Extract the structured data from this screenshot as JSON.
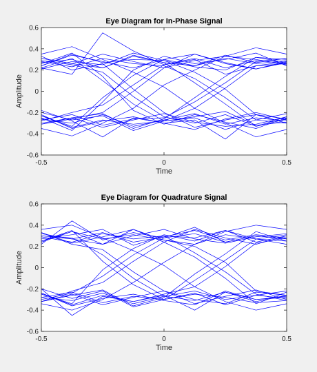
{
  "chart_data": [
    {
      "type": "line",
      "title": "Eye Diagram for In-Phase Signal",
      "xlabel": "Time",
      "ylabel": "Amplitude",
      "xlim": [
        -0.5,
        0.5
      ],
      "ylim": [
        -0.6,
        0.6
      ],
      "xticks": [
        -0.5,
        0,
        0.5
      ],
      "xtick_labels": [
        "-0.5",
        "0",
        "0.5"
      ],
      "yticks": [
        -0.6,
        -0.4,
        -0.2,
        0,
        0.2,
        0.4,
        0.6
      ],
      "ytick_labels": [
        "-0.6",
        "-0.4",
        "-0.2",
        "0",
        "0.2",
        "0.4",
        "0.6"
      ],
      "grid": false,
      "line_color": "#0000ff",
      "x": [
        -0.5,
        -0.375,
        -0.25,
        -0.125,
        0,
        0.125,
        0.25,
        0.375,
        0.5
      ],
      "traces": [
        [
          0.27,
          0.3,
          0.22,
          0.33,
          0.27,
          0.24,
          0.31,
          0.26,
          0.29
        ],
        [
          0.24,
          0.34,
          0.28,
          0.22,
          0.3,
          0.35,
          0.26,
          0.21,
          0.27
        ],
        [
          0.31,
          0.26,
          0.35,
          0.28,
          0.22,
          0.29,
          0.33,
          0.3,
          0.25
        ],
        [
          0.21,
          0.28,
          0.25,
          0.36,
          0.29,
          0.23,
          0.2,
          0.32,
          0.3
        ],
        [
          -0.26,
          -0.3,
          -0.22,
          -0.33,
          -0.27,
          -0.21,
          -0.31,
          -0.25,
          -0.28
        ],
        [
          -0.22,
          -0.35,
          -0.28,
          -0.24,
          -0.3,
          -0.36,
          -0.26,
          -0.2,
          -0.27
        ],
        [
          -0.3,
          -0.25,
          -0.34,
          -0.27,
          -0.21,
          -0.29,
          -0.33,
          -0.31,
          -0.24
        ],
        [
          -0.2,
          -0.27,
          -0.23,
          -0.37,
          -0.28,
          -0.24,
          -0.19,
          -0.32,
          -0.29
        ],
        [
          0.29,
          0.25,
          0.18,
          -0.05,
          -0.24,
          -0.3,
          -0.22,
          -0.33,
          -0.26
        ],
        [
          0.22,
          0.31,
          0.1,
          -0.12,
          -0.28,
          -0.25,
          -0.36,
          -0.27,
          -0.21
        ],
        [
          0.33,
          0.2,
          0.26,
          0.02,
          -0.2,
          -0.34,
          -0.27,
          -0.22,
          -0.3
        ],
        [
          0.26,
          0.36,
          0.14,
          -0.18,
          -0.31,
          -0.22,
          -0.29,
          -0.35,
          -0.25
        ],
        [
          -0.28,
          -0.2,
          -0.13,
          0.06,
          0.25,
          0.31,
          0.22,
          0.29,
          0.26
        ],
        [
          -0.23,
          -0.33,
          -0.06,
          0.15,
          0.3,
          0.24,
          0.34,
          0.27,
          0.31
        ],
        [
          -0.31,
          -0.26,
          -0.2,
          0.0,
          0.22,
          0.35,
          0.27,
          0.21,
          0.28
        ],
        [
          -0.25,
          -0.37,
          -0.1,
          0.2,
          0.33,
          0.26,
          0.3,
          0.36,
          0.24
        ],
        [
          0.28,
          0.23,
          0.31,
          0.26,
          0.24,
          0.12,
          -0.06,
          -0.27,
          -0.3
        ],
        [
          0.24,
          0.35,
          0.27,
          0.3,
          0.29,
          0.18,
          0.02,
          -0.22,
          -0.26
        ],
        [
          0.31,
          0.26,
          0.22,
          0.34,
          0.27,
          0.08,
          -0.12,
          -0.33,
          -0.24
        ],
        [
          -0.27,
          -0.22,
          -0.32,
          -0.26,
          -0.25,
          -0.1,
          0.08,
          0.28,
          0.31
        ],
        [
          -0.23,
          -0.34,
          -0.27,
          -0.31,
          -0.28,
          -0.16,
          0.03,
          0.24,
          0.26
        ],
        [
          -0.31,
          -0.25,
          -0.21,
          -0.35,
          -0.26,
          -0.06,
          0.14,
          0.32,
          0.27
        ],
        [
          0.35,
          0.42,
          0.3,
          0.18,
          0.04,
          -0.16,
          -0.3,
          -0.43,
          -0.36
        ],
        [
          -0.35,
          -0.42,
          -0.3,
          -0.16,
          0.06,
          0.2,
          0.33,
          0.41,
          0.35
        ],
        [
          0.22,
          0.16,
          0.55,
          0.38,
          0.25,
          0.3,
          0.16,
          0.24,
          0.28
        ],
        [
          -0.18,
          -0.28,
          -0.43,
          -0.25,
          -0.3,
          -0.27,
          -0.45,
          -0.22,
          -0.3
        ]
      ]
    },
    {
      "type": "line",
      "title": "Eye Diagram for Quadrature Signal",
      "xlabel": "Time",
      "ylabel": "Amplitude",
      "xlim": [
        -0.5,
        0.5
      ],
      "ylim": [
        -0.6,
        0.6
      ],
      "xticks": [
        -0.5,
        0,
        0.5
      ],
      "xtick_labels": [
        "-0.5",
        "0",
        "0.5"
      ],
      "yticks": [
        -0.6,
        -0.4,
        -0.2,
        0,
        0.2,
        0.4,
        0.6
      ],
      "ytick_labels": [
        "-0.6",
        "-0.4",
        "-0.2",
        "0",
        "0.2",
        "0.4",
        "0.6"
      ],
      "grid": false,
      "line_color": "#0000ff",
      "x": [
        -0.5,
        -0.375,
        -0.25,
        -0.125,
        0,
        0.125,
        0.25,
        0.375,
        0.5
      ],
      "traces": [
        [
          0.3,
          0.27,
          0.33,
          0.24,
          0.29,
          0.35,
          0.26,
          0.31,
          0.28
        ],
        [
          0.25,
          0.34,
          0.22,
          0.3,
          0.36,
          0.27,
          0.23,
          0.29,
          0.32
        ],
        [
          0.33,
          0.23,
          0.29,
          0.36,
          0.26,
          0.22,
          0.31,
          0.27,
          0.25
        ],
        [
          0.27,
          0.31,
          0.36,
          0.21,
          0.3,
          0.28,
          0.35,
          0.24,
          0.3
        ],
        [
          -0.28,
          -0.31,
          -0.24,
          -0.34,
          -0.27,
          -0.22,
          -0.3,
          -0.26,
          -0.29
        ],
        [
          -0.24,
          -0.36,
          -0.29,
          -0.25,
          -0.31,
          -0.35,
          -0.22,
          -0.3,
          -0.27
        ],
        [
          -0.32,
          -0.25,
          -0.35,
          -0.28,
          -0.22,
          -0.3,
          -0.34,
          -0.23,
          -0.26
        ],
        [
          -0.2,
          -0.29,
          -0.22,
          -0.37,
          -0.3,
          -0.25,
          -0.28,
          -0.33,
          -0.31
        ],
        [
          0.3,
          0.28,
          0.12,
          -0.1,
          -0.27,
          -0.31,
          -0.23,
          -0.32,
          -0.26
        ],
        [
          0.25,
          0.35,
          0.06,
          -0.16,
          -0.3,
          -0.24,
          -0.35,
          -0.26,
          -0.22
        ],
        [
          0.33,
          0.22,
          0.17,
          -0.04,
          -0.22,
          -0.34,
          -0.27,
          -0.21,
          -0.3
        ],
        [
          -0.3,
          -0.24,
          -0.08,
          0.12,
          0.28,
          0.32,
          0.24,
          0.3,
          0.27
        ],
        [
          -0.25,
          -0.34,
          -0.02,
          0.18,
          0.31,
          0.25,
          0.35,
          0.27,
          0.22
        ],
        [
          -0.32,
          -0.22,
          -0.14,
          0.06,
          0.24,
          0.36,
          0.28,
          0.22,
          0.3
        ],
        [
          0.29,
          0.24,
          0.32,
          0.27,
          0.3,
          0.14,
          -0.04,
          -0.25,
          -0.31
        ],
        [
          0.24,
          0.34,
          0.27,
          0.31,
          0.26,
          0.2,
          0.05,
          -0.22,
          -0.26
        ],
        [
          0.32,
          0.27,
          0.22,
          0.36,
          0.24,
          0.1,
          -0.1,
          -0.34,
          -0.23
        ],
        [
          -0.28,
          -0.23,
          -0.33,
          -0.27,
          -0.3,
          -0.12,
          0.07,
          0.27,
          0.31
        ],
        [
          -0.24,
          -0.35,
          -0.26,
          -0.32,
          -0.25,
          -0.18,
          0.01,
          0.23,
          0.28
        ],
        [
          -0.32,
          -0.26,
          -0.21,
          -0.36,
          -0.28,
          -0.06,
          0.13,
          0.34,
          0.25
        ],
        [
          0.36,
          0.4,
          0.28,
          0.16,
          0.02,
          -0.18,
          -0.32,
          -0.4,
          -0.34
        ],
        [
          -0.34,
          -0.4,
          -0.3,
          -0.14,
          0.05,
          0.22,
          0.34,
          0.4,
          0.36
        ],
        [
          0.22,
          0.44,
          0.26,
          0.33,
          0.28,
          0.38,
          0.24,
          0.3,
          0.27
        ],
        [
          -0.2,
          -0.45,
          -0.27,
          -0.32,
          -0.26,
          -0.4,
          -0.23,
          -0.3,
          -0.28
        ]
      ]
    }
  ]
}
